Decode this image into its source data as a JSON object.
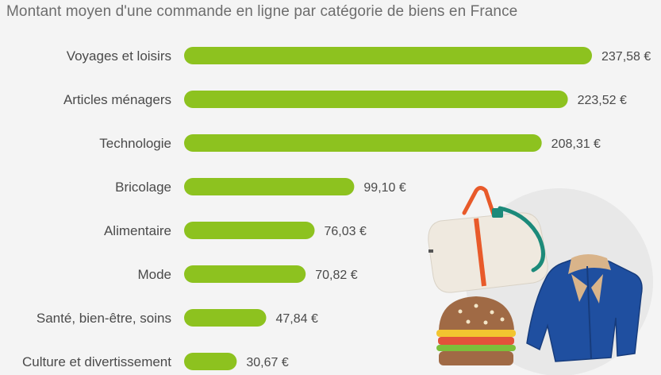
{
  "title": "Montant moyen d'une commande en ligne par catégorie de biens en France",
  "colors": {
    "bar": "#8dc21f",
    "label": "#4a4a4a",
    "value": "#4a4a4a",
    "title": "#6d6d6d"
  },
  "chart_data": {
    "type": "bar",
    "orientation": "horizontal",
    "title": "Montant moyen d'une commande en ligne par catégorie de biens en France",
    "categories": [
      "Voyages et loisirs",
      "Articles ménagers",
      "Technologie",
      "Bricolage",
      "Alimentaire",
      "Mode",
      "Santé, bien-être, soins",
      "Culture et divertissement"
    ],
    "values": [
      237.58,
      223.52,
      208.31,
      99.1,
      76.03,
      70.82,
      47.84,
      30.67
    ],
    "value_labels": [
      "237,58 €",
      "223,52 €",
      "208,31 €",
      "99,10 €",
      "76,03 €",
      "70,82 €",
      "47,84 €",
      "30,67 €"
    ],
    "unit": "€",
    "xlim": [
      0,
      237.58
    ],
    "grid": false,
    "legend": "none"
  },
  "decoration": [
    "travel-bag-icon",
    "jacket-icon",
    "burger-icon"
  ]
}
